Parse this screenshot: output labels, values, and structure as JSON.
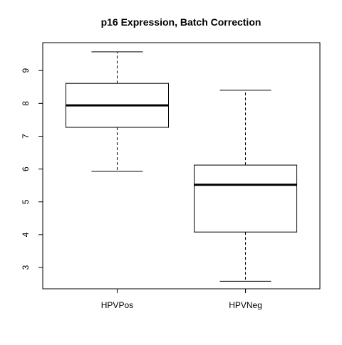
{
  "chart_data": {
    "type": "boxplot",
    "title": "p16 Expression, Batch Correction",
    "xlabel": "",
    "ylabel": "",
    "ylim": [
      2.35,
      9.85
    ],
    "yticks": [
      3,
      4,
      5,
      6,
      7,
      8,
      9
    ],
    "ytick_labels": [
      "3",
      "4",
      "5",
      "6",
      "7",
      "8",
      "9"
    ],
    "categories": [
      "HPVPos",
      "HPVNeg"
    ],
    "boxes": [
      {
        "category": "HPVPos",
        "min": 5.93,
        "q1": 7.27,
        "median": 7.94,
        "q3": 8.61,
        "max": 9.57
      },
      {
        "category": "HPVNeg",
        "min": 2.58,
        "q1": 4.08,
        "median": 5.52,
        "q3": 6.12,
        "max": 8.4
      }
    ],
    "grid": false,
    "legend": "none",
    "colors": {
      "box_fill": "#ffffff",
      "stroke": "#000000"
    }
  }
}
